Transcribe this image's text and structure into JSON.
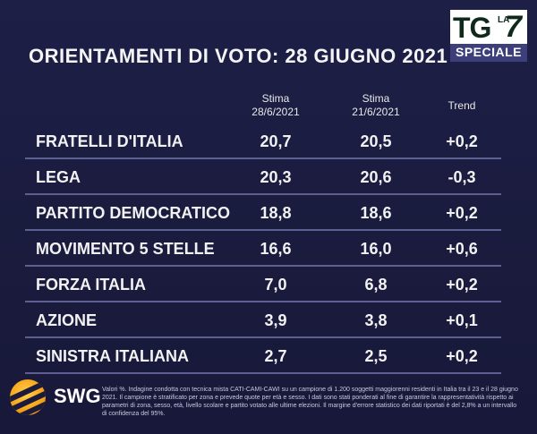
{
  "title": "ORIENTAMENTI DI VOTO: 28 GIUGNO 2021",
  "logo": {
    "tg": "TG",
    "la": "LA",
    "seven": "7",
    "speciale": "SPECIALE"
  },
  "headers": {
    "col1_line1": "Stima",
    "col1_line2": "28/6/2021",
    "col2_line1": "Stima",
    "col2_line2": "21/6/2021",
    "trend": "Trend"
  },
  "rows": [
    {
      "party": "FRATELLI D'ITALIA",
      "v1": "20,7",
      "v2": "20,5",
      "trend": "+0,2"
    },
    {
      "party": "LEGA",
      "v1": "20,3",
      "v2": "20,6",
      "trend": "-0,3"
    },
    {
      "party": "PARTITO DEMOCRATICO",
      "v1": "18,8",
      "v2": "18,6",
      "trend": "+0,2"
    },
    {
      "party": "MOVIMENTO 5 STELLE",
      "v1": "16,6",
      "v2": "16,0",
      "trend": "+0,6"
    },
    {
      "party": "FORZA ITALIA",
      "v1": "7,0",
      "v2": "6,8",
      "trend": "+0,2"
    },
    {
      "party": "AZIONE",
      "v1": "3,9",
      "v2": "3,8",
      "trend": "+0,1"
    },
    {
      "party": "SINISTRA ITALIANA",
      "v1": "2,7",
      "v2": "2,5",
      "trend": "+0,2"
    }
  ],
  "footer": {
    "brand": "SWG",
    "note": "Valori %. Indagine condotta con tecnica mista CATI-CAMI-CAWI su un campione di 1.200 soggetti maggiorenni residenti in Italia tra il 23 e il 28 giugno 2021. Il campione è stratificato per zona e prevede quote per età e sesso. I dati sono stati ponderati al fine di garantire la rappresentatività rispetto ai parametri di zona, sesso, età, livello scolare e partito votato alle ultime elezioni. Il margine d'errore statistico dei dati riportati è del 2,8% a un intervallo di confidenza del 95%."
  }
}
